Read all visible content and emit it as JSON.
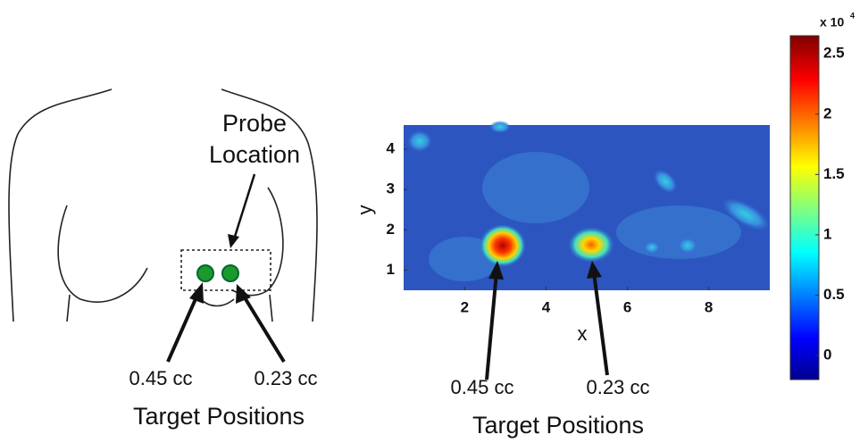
{
  "left_panel": {
    "probe_label": [
      "Probe",
      "Location"
    ],
    "target_labels": [
      "0.45 cc",
      "0.23 cc"
    ],
    "caption": "Target Positions"
  },
  "right_panel": {
    "x_label": "x",
    "y_label": "y",
    "xlim": [
      0.5,
      9.5
    ],
    "ylim": [
      0.5,
      4.6
    ],
    "xticks": [
      2,
      4,
      6,
      8
    ],
    "yticks": [
      1,
      2,
      3,
      4
    ],
    "colorbar": {
      "multiplier": "x 10",
      "exponent": "4",
      "clim": [
        -0.2,
        2.65
      ],
      "ticks": [
        0,
        0.5,
        1,
        1.5,
        2,
        2.5
      ]
    },
    "target_labels": [
      "0.45 cc",
      "0.23 cc"
    ],
    "caption": "Target Positions"
  }
}
